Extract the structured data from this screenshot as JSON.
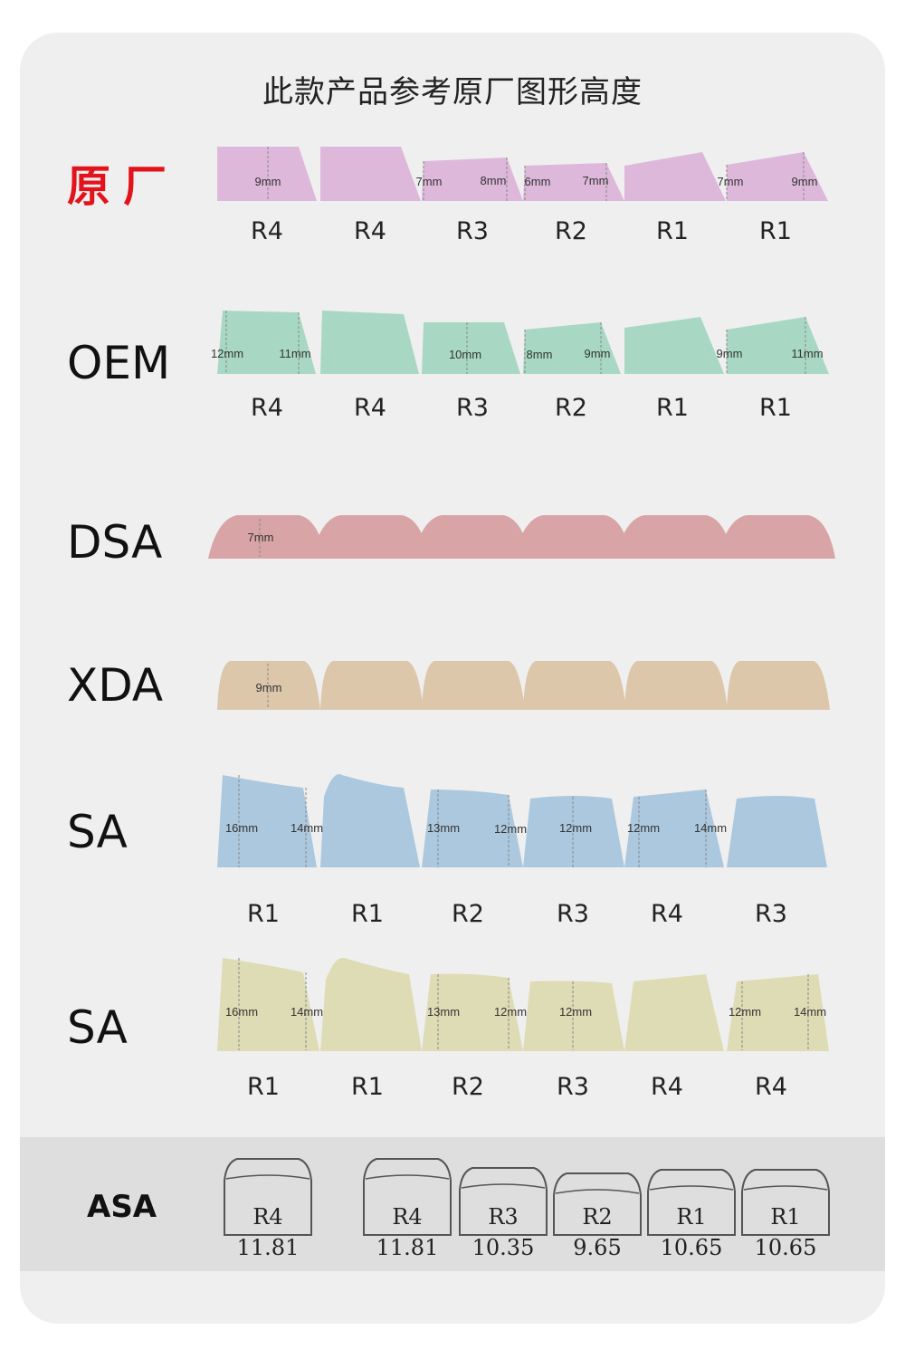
{
  "title": "此款产品参考原厂图形高度",
  "rows": [
    {
      "id": "oem-original",
      "label": "原厂",
      "color": "#ddb8da",
      "keys": [
        "R4",
        "R4",
        "R3",
        "R2",
        "R1",
        "R1"
      ],
      "measures": [
        "9mm",
        "7mm",
        "8mm",
        "6mm",
        "7mm",
        "7mm",
        "9mm"
      ]
    },
    {
      "id": "oem",
      "label": "OEM",
      "color": "#a8d8c4",
      "keys": [
        "R4",
        "R4",
        "R3",
        "R2",
        "R1",
        "R1"
      ],
      "measures": [
        "12mm",
        "11mm",
        "10mm",
        "8mm",
        "9mm",
        "9mm",
        "11mm"
      ]
    },
    {
      "id": "dsa",
      "label": "DSA",
      "color": "#d8a4a6",
      "keys": [],
      "measures": [
        "7mm"
      ]
    },
    {
      "id": "xda",
      "label": "XDA",
      "color": "#dcc7aa",
      "keys": [],
      "measures": [
        "9mm"
      ]
    },
    {
      "id": "sa",
      "label": "SA",
      "color": "#abc8de",
      "keys": [
        "R1",
        "R1",
        "R2",
        "R3",
        "R4",
        "R3"
      ],
      "measures": [
        "16mm",
        "14mm",
        "13mm",
        "12mm",
        "12mm",
        "12mm",
        "14mm"
      ]
    },
    {
      "id": "sa2",
      "label": "SA",
      "color": "#dedcb5",
      "keys": [
        "R1",
        "R1",
        "R2",
        "R3",
        "R4",
        "R4"
      ],
      "measures": [
        "16mm",
        "14mm",
        "13mm",
        "12mm",
        "12mm",
        "12mm",
        "14mm"
      ]
    }
  ],
  "asa": {
    "label": "ASA",
    "keys": [
      "R4",
      "R4",
      "R3",
      "R2",
      "R1",
      "R1"
    ],
    "values": [
      "11.81",
      "11.81",
      "10.35",
      "9.65",
      "10.65",
      "10.65"
    ]
  }
}
